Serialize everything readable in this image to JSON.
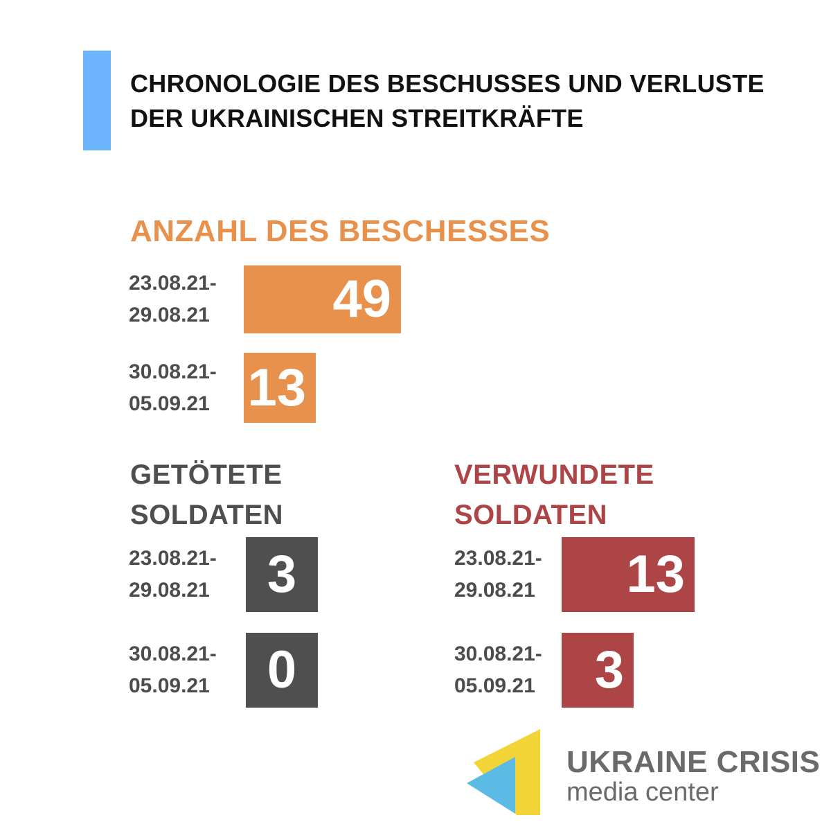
{
  "title": "CHRONOLOGIE DES BESCHUSSES UND VERLUSTE DER UKRAINISCHEN STREITKRÄFTE",
  "colors": {
    "accent_bar": "#6cb4fb",
    "shelling": "#e8914d",
    "killed": "#4f4f4f",
    "wounded": "#ad4446",
    "logo_yellow": "#f3d437",
    "logo_blue": "#5bbbe5",
    "logo_text": "#6a6a6a"
  },
  "chart_data": [
    {
      "type": "bar",
      "title": "ANZAHL DES BESCHESSES",
      "categories": [
        "23.08.21-\n29.08.21",
        "30.08.21-\n05.09.21"
      ],
      "values": [
        49,
        13
      ],
      "color": "#e8914d"
    },
    {
      "type": "bar",
      "title": "GETÖTETE\nSOLDATEN",
      "categories": [
        "23.08.21-\n29.08.21",
        "30.08.21-\n05.09.21"
      ],
      "values": [
        3,
        0
      ],
      "color": "#4f4f4f"
    },
    {
      "type": "bar",
      "title": "VERWUNDETE\nSOLDATEN",
      "categories": [
        "23.08.21-\n29.08.21",
        "30.08.21-\n05.09.21"
      ],
      "values": [
        13,
        3
      ],
      "color": "#ad4446"
    }
  ],
  "logo": {
    "line1": "UKRAINE CRISIS",
    "line2": "media center"
  }
}
